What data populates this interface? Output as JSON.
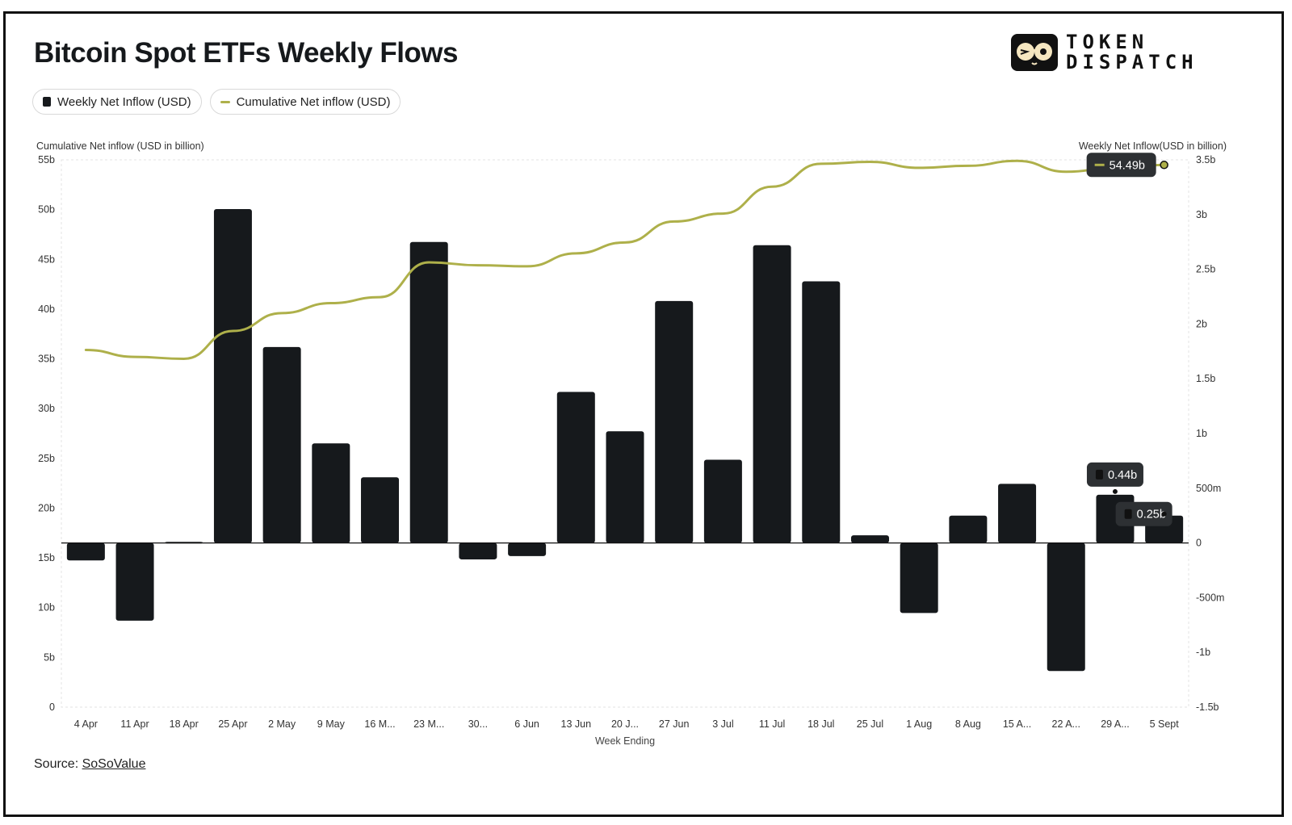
{
  "title": "Bitcoin Spot ETFs Weekly Flows",
  "legend": {
    "bars": "Weekly Net Inflow (USD)",
    "line": "Cumulative Net inflow (USD)"
  },
  "logo": {
    "line1": "TOKEN",
    "line2": "DISPATCH"
  },
  "source": {
    "prefix": "Source: ",
    "link": "SoSoValue"
  },
  "colors": {
    "bar": "#16191c",
    "line": "#aeb04a",
    "tooltip": "#2d3033"
  },
  "chart_data": {
    "type": "bar",
    "title": "Bitcoin Spot ETFs Weekly Flows",
    "xlabel": "Week Ending",
    "ylabel_left": "Cumulative Net inflow (USD in billion)",
    "ylabel_right": "Weekly Net Inflow(USD in billion)",
    "categories": [
      "4 Apr",
      "11 Apr",
      "18 Apr",
      "25 Apr",
      "2 May",
      "9 May",
      "16 M...",
      "23 M...",
      "30...",
      "6 Jun",
      "13 Jun",
      "20 J...",
      "27 Jun",
      "3 Jul",
      "11 Jul",
      "18 Jul",
      "25 Jul",
      "1 Aug",
      "8 Aug",
      "15 A...",
      "22 A...",
      "29 A...",
      "5 Sept"
    ],
    "y_left": {
      "min": 0,
      "max": 55,
      "ticks": [
        0,
        5,
        10,
        15,
        20,
        25,
        30,
        35,
        40,
        45,
        50,
        55
      ],
      "tick_labels": [
        "0",
        "5b",
        "10b",
        "15b",
        "20b",
        "25b",
        "30b",
        "35b",
        "40b",
        "45b",
        "50b",
        "55b"
      ]
    },
    "y_right": {
      "min": -1.5,
      "max": 3.5,
      "ticks": [
        -1.5,
        -1,
        -0.5,
        0,
        0.5,
        1,
        1.5,
        2,
        2.5,
        3,
        3.5
      ],
      "tick_labels": [
        "-1.5b",
        "-1b",
        "-500m",
        "0",
        "500m",
        "1b",
        "1.5b",
        "2b",
        "2.5b",
        "3b",
        "3.5b"
      ]
    },
    "series": [
      {
        "name": "Weekly Net Inflow (USD)",
        "type": "bar",
        "axis": "right",
        "values": [
          -0.16,
          -0.71,
          0.01,
          3.05,
          1.79,
          0.91,
          0.6,
          2.75,
          -0.15,
          -0.12,
          1.38,
          1.02,
          2.21,
          0.76,
          2.72,
          2.39,
          0.07,
          -0.64,
          0.25,
          0.54,
          -1.17,
          0.44,
          0.25
        ]
      },
      {
        "name": "Cumulative Net inflow (USD)",
        "type": "line",
        "axis": "left",
        "values": [
          35.9,
          35.2,
          35.0,
          37.8,
          39.6,
          40.6,
          41.2,
          44.7,
          44.4,
          44.3,
          45.6,
          46.7,
          48.8,
          49.6,
          52.3,
          54.6,
          54.8,
          54.2,
          54.4,
          54.9,
          53.8,
          54.2,
          54.49
        ]
      }
    ],
    "annotations": [
      {
        "series": "Cumulative Net inflow (USD)",
        "category": "5 Sept",
        "label": "54.49b"
      },
      {
        "series": "Weekly Net Inflow (USD)",
        "category": "29 A...",
        "label": "0.44b"
      },
      {
        "series": "Weekly Net Inflow (USD)",
        "category": "5 Sept",
        "label": "0.25b"
      }
    ],
    "grid": false,
    "legend": "top-left"
  }
}
